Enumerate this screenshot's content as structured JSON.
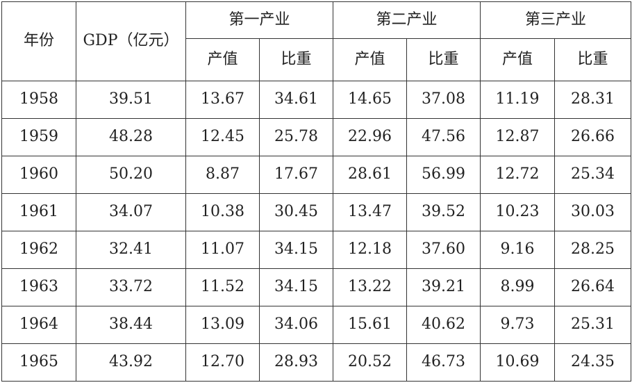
{
  "table": {
    "headers": {
      "year": "年份",
      "gdp": "GDP（亿元）",
      "sectors": [
        "第一产业",
        "第二产业",
        "第三产业"
      ],
      "sub": [
        "产值",
        "比重"
      ]
    },
    "rows": [
      [
        "1958",
        "39.51",
        "13.67",
        "34.61",
        "14.65",
        "37.08",
        "11.19",
        "28.31"
      ],
      [
        "1959",
        "48.28",
        "12.45",
        "25.78",
        "22.96",
        "47.56",
        "12.87",
        "26.66"
      ],
      [
        "1960",
        "50.20",
        "8.87",
        "17.67",
        "28.61",
        "56.99",
        "12.72",
        "25.34"
      ],
      [
        "1961",
        "34.07",
        "10.38",
        "30.45",
        "13.47",
        "39.52",
        "10.23",
        "30.03"
      ],
      [
        "1962",
        "32.41",
        "11.07",
        "34.15",
        "12.18",
        "37.60",
        "9.16",
        "28.25"
      ],
      [
        "1963",
        "33.72",
        "11.52",
        "34.15",
        "13.22",
        "39.21",
        "8.99",
        "26.64"
      ],
      [
        "1964",
        "38.44",
        "13.09",
        "34.06",
        "15.61",
        "40.62",
        "9.73",
        "25.31"
      ],
      [
        "1965",
        "43.92",
        "12.70",
        "28.93",
        "20.52",
        "46.73",
        "10.69",
        "24.35"
      ]
    ]
  }
}
